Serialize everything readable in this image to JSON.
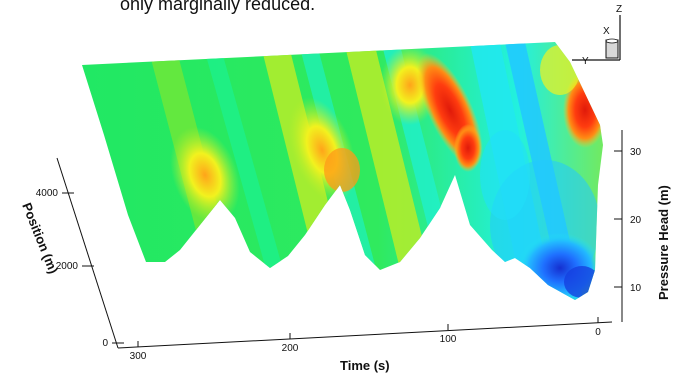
{
  "caption": "only marginally reduced.",
  "chart_data": {
    "type": "3d-surface",
    "axes": {
      "time": {
        "label": "Time (s)",
        "ticks": [
          "300",
          "200",
          "100",
          "0"
        ]
      },
      "position": {
        "label": "Position (m)",
        "ticks": [
          "0",
          "2000",
          "4000"
        ]
      },
      "pressure": {
        "label": "Pressure Head (m)",
        "ticks": [
          "10",
          "20",
          "30"
        ]
      }
    },
    "triad": {
      "z": "Z",
      "x": "X",
      "y": "Y"
    },
    "colormap": [
      "#1540e0",
      "#1f86ff",
      "#22c8ff",
      "#22f0e0",
      "#1ef08a",
      "#20e864",
      "#6fe83a",
      "#b8ee2a",
      "#f2f21e",
      "#ffc81e",
      "#ff8c14",
      "#ff3c0f",
      "#e01a0a"
    ]
  }
}
